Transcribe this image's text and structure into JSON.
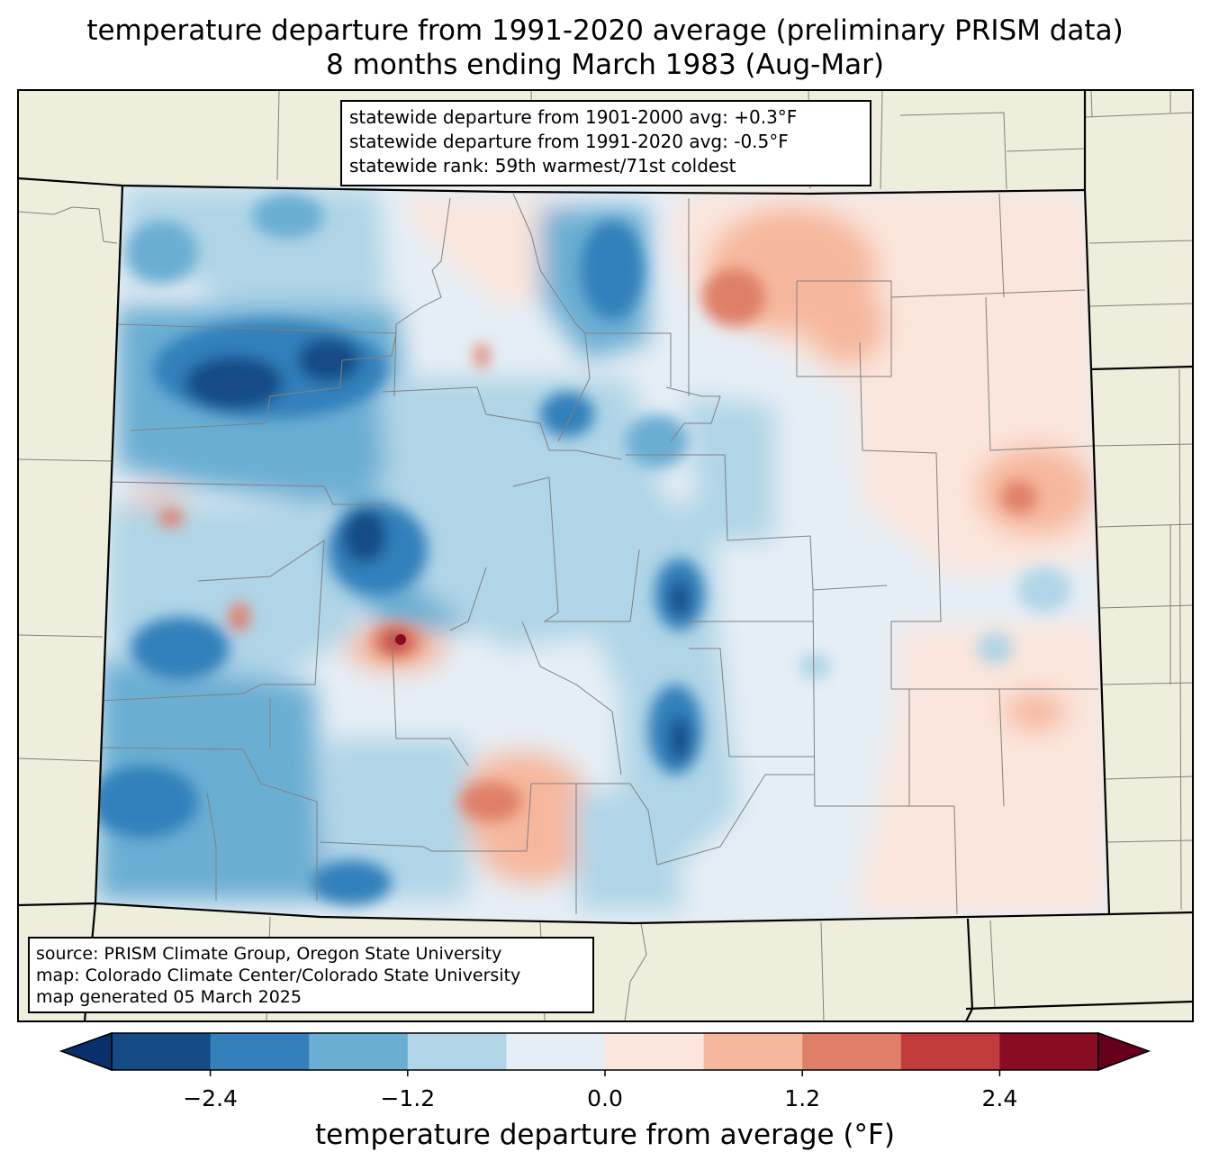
{
  "title_line1": "temperature departure from 1991-2020 average (preliminary PRISM data)",
  "title_line2": "8 months ending March 1983 (Aug-Mar)",
  "stats": {
    "line1": "statewide departure from 1901-2000 avg: +0.3°F",
    "line2": "statewide departure from 1991-2020 avg: -0.5°F",
    "line3": "statewide rank: 59th warmest/71st coldest"
  },
  "source": {
    "line1": "source: PRISM Climate Group, Oregon State University",
    "line2": "map: Colorado Climate Center/Colorado State University",
    "line3": "map generated 05 March 2025"
  },
  "colorbar": {
    "label": "temperature departure from average (°F)",
    "ticks": [
      "−2.4",
      "−1.2",
      "0.0",
      "1.2",
      "2.4"
    ],
    "tick_values": [
      -2.4,
      -1.2,
      0.0,
      1.2,
      2.4
    ],
    "bounds": [
      -3.0,
      -2.4,
      -1.8,
      -1.2,
      -0.6,
      0.0,
      0.6,
      1.2,
      1.8,
      2.4,
      3.0
    ],
    "colors": [
      "#08306b",
      "#144b87",
      "#3380bb",
      "#6aaed3",
      "#b0d5e7",
      "#e6eef5",
      "#fbe5dc",
      "#f6b89d",
      "#e07f68",
      "#c03b3c",
      "#870c24",
      "#67001f"
    ]
  },
  "colors": {
    "background_land": "#efeedc",
    "state_border": "#000000",
    "county_border": "#808080"
  }
}
